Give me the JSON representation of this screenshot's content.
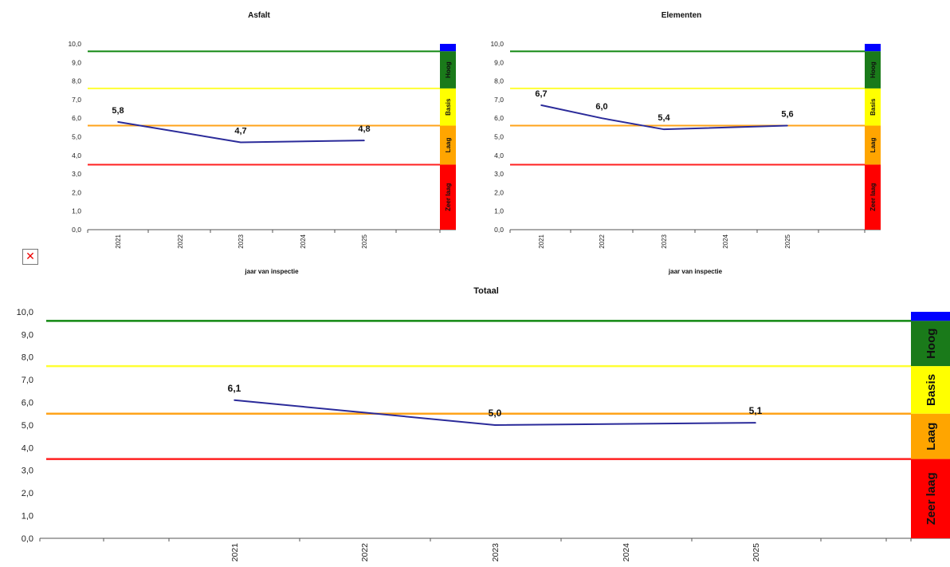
{
  "colors": {
    "line": "#2b2b9a",
    "hoog": "#1a7a1a",
    "basis": "#ffff00",
    "laag": "#ffa500",
    "zeer_laag": "#ff0000",
    "top": "#0000ff",
    "hline_hoog": "#118811",
    "hline_basis": "#ffff33",
    "hline_laag": "#ffa31a",
    "hline_zeer_laag": "#ff2020"
  },
  "broken_image_icon": "broken-image-icon",
  "chart_data": [
    {
      "type": "line",
      "title": "Asfalt",
      "xlabel": "jaar van inspectie",
      "ylabel": "",
      "ylim": [
        0,
        10
      ],
      "yticks": [
        "0,0",
        "1,0",
        "2,0",
        "3,0",
        "4,0",
        "5,0",
        "6,0",
        "7,0",
        "8,0",
        "9,0",
        "10,0"
      ],
      "x": [
        "2021",
        "2022",
        "2023",
        "2024",
        "2025"
      ],
      "x_tick_labels": [
        "2021",
        "2022",
        "2023",
        "2024",
        "2025"
      ],
      "series": [
        {
          "values": [
            5.8,
            null,
            4.7,
            null,
            4.8
          ],
          "labels": [
            "5,8",
            "",
            "4,7",
            "",
            "4,8"
          ]
        }
      ],
      "thresholds": {
        "hoog": 9.6,
        "basis": 7.6,
        "laag": 5.6,
        "zeer_laag": 3.5
      },
      "bands": [
        "Hoog",
        "Basis",
        "Laag",
        "Zeer laag"
      ]
    },
    {
      "type": "line",
      "title": "Elementen",
      "xlabel": "jaar van inspectie",
      "ylabel": "",
      "ylim": [
        0,
        10
      ],
      "yticks": [
        "0,0",
        "1,0",
        "2,0",
        "3,0",
        "4,0",
        "5,0",
        "6,0",
        "7,0",
        "8,0",
        "9,0",
        "10,0"
      ],
      "x": [
        "2021",
        "2022",
        "2023",
        "2024",
        "2025"
      ],
      "x_tick_labels": [
        "2021",
        "2022",
        "2023",
        "2024",
        "2025"
      ],
      "series": [
        {
          "values": [
            6.7,
            6.0,
            5.4,
            null,
            5.6
          ],
          "labels": [
            "6,7",
            "6,0",
            "5,4",
            "",
            "5,6"
          ]
        }
      ],
      "thresholds": {
        "hoog": 9.6,
        "basis": 7.6,
        "laag": 5.6,
        "zeer_laag": 3.5
      },
      "bands": [
        "Hoog",
        "Basis",
        "Laag",
        "Zeer laag"
      ]
    },
    {
      "type": "line",
      "title": "Totaal",
      "xlabel": "",
      "ylabel": "",
      "ylim": [
        0,
        10
      ],
      "yticks": [
        "0,0",
        "1,0",
        "2,0",
        "3,0",
        "4,0",
        "5,0",
        "6,0",
        "7,0",
        "8,0",
        "9,0",
        "10,0"
      ],
      "x": [
        "2021",
        "2022",
        "2023",
        "2024",
        "2025"
      ],
      "x_tick_labels": [
        "2021",
        "2022",
        "2023",
        "2024",
        "2025"
      ],
      "series": [
        {
          "values": [
            6.1,
            null,
            5.0,
            null,
            5.1
          ],
          "labels": [
            "6,1",
            "",
            "5,0",
            "",
            "5,1"
          ]
        }
      ],
      "thresholds": {
        "hoog": 9.6,
        "basis": 7.6,
        "laag": 5.5,
        "zeer_laag": 3.5
      },
      "bands": [
        "Hoog",
        "Basis",
        "Laag",
        "Zeer laag"
      ]
    }
  ]
}
